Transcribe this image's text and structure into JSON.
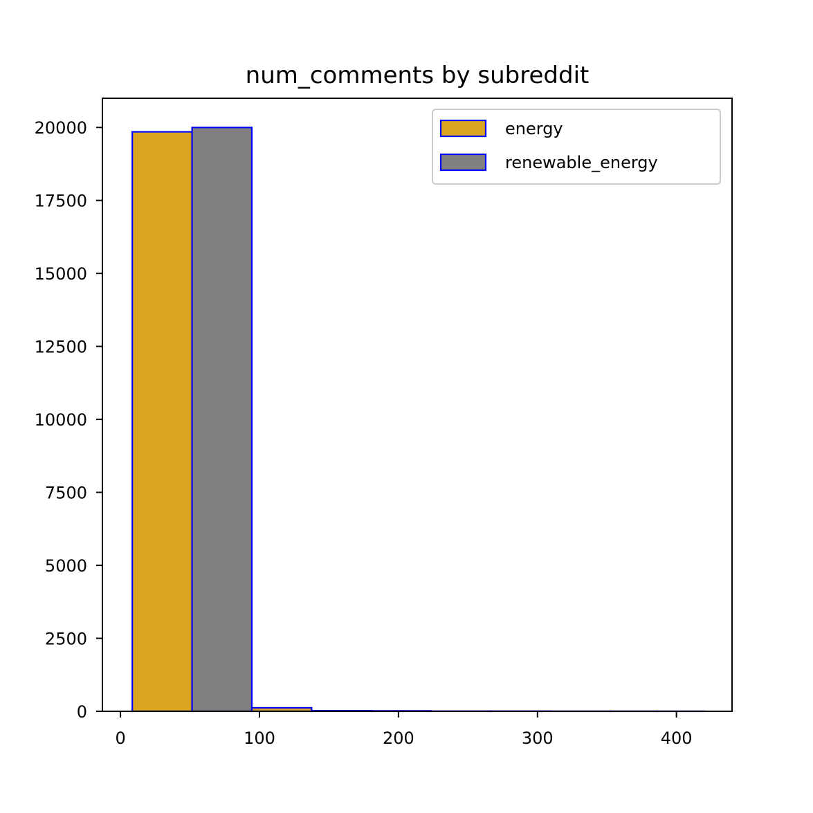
{
  "chart_data": {
    "type": "bar",
    "subtype": "histogram",
    "title": "num_comments by subreddit",
    "xlabel": "",
    "ylabel": "",
    "xlim": [
      -13,
      440
    ],
    "ylim": [
      0,
      21000
    ],
    "xticks": [
      0,
      100,
      200,
      300,
      400
    ],
    "yticks": [
      0,
      2500,
      5000,
      7500,
      10000,
      12500,
      15000,
      17500,
      20000
    ],
    "grid": false,
    "legend_position": "top-right",
    "edge_color": "#0000ff",
    "bin_edges": [
      8.5,
      94.5,
      180.5,
      266.5,
      352.5,
      420
    ],
    "series": [
      {
        "name": "energy",
        "color": "#daa520",
        "values": [
          19850,
          120,
          15,
          5,
          3
        ]
      },
      {
        "name": "renewable_energy",
        "color": "#808080",
        "values": [
          20000,
          20,
          5,
          3,
          2
        ]
      }
    ]
  }
}
